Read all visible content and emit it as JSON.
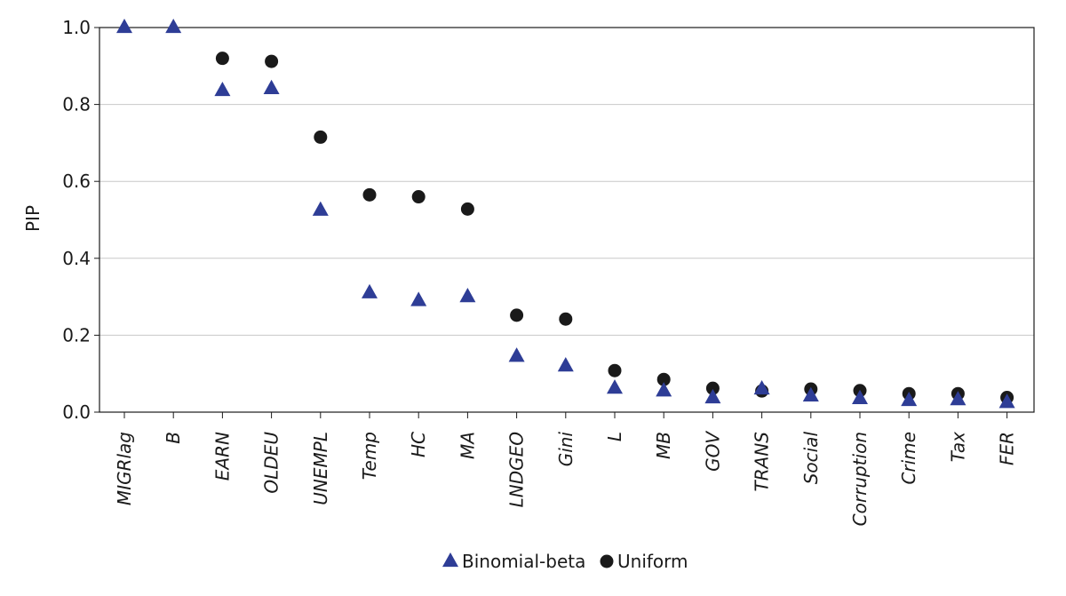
{
  "chart_data": {
    "type": "scatter",
    "ylabel": "PIP",
    "ylim": [
      0,
      1
    ],
    "yticks": [
      "0.0",
      "0.2",
      "0.4",
      "0.6",
      "0.8",
      "1.0"
    ],
    "grid": true,
    "legend_position": "bottom",
    "categories": [
      "MIGRlag",
      "B",
      "EARN",
      "OLDEU",
      "UNEMPL",
      "Temp",
      "HC",
      "MA",
      "LNDGEO",
      "Gini",
      "L",
      "MB",
      "GOV",
      "TRANS",
      "Social",
      "Corruption",
      "Crime",
      "Tax",
      "FER"
    ],
    "series": [
      {
        "name": "Binomial-beta",
        "marker": "triangle",
        "color": "#2e3d96",
        "values": [
          1.0,
          1.0,
          0.836,
          0.841,
          0.525,
          0.31,
          0.29,
          0.3,
          0.145,
          0.12,
          0.062,
          0.055,
          0.037,
          0.06,
          0.042,
          0.035,
          0.03,
          0.032,
          0.025
        ]
      },
      {
        "name": "Uniform",
        "marker": "circle",
        "color": "#1a1a1a",
        "values": [
          null,
          null,
          0.92,
          0.912,
          0.715,
          0.565,
          0.56,
          0.528,
          0.252,
          0.242,
          0.108,
          0.085,
          0.062,
          0.055,
          0.06,
          0.056,
          0.048,
          0.048,
          0.038
        ]
      }
    ]
  }
}
